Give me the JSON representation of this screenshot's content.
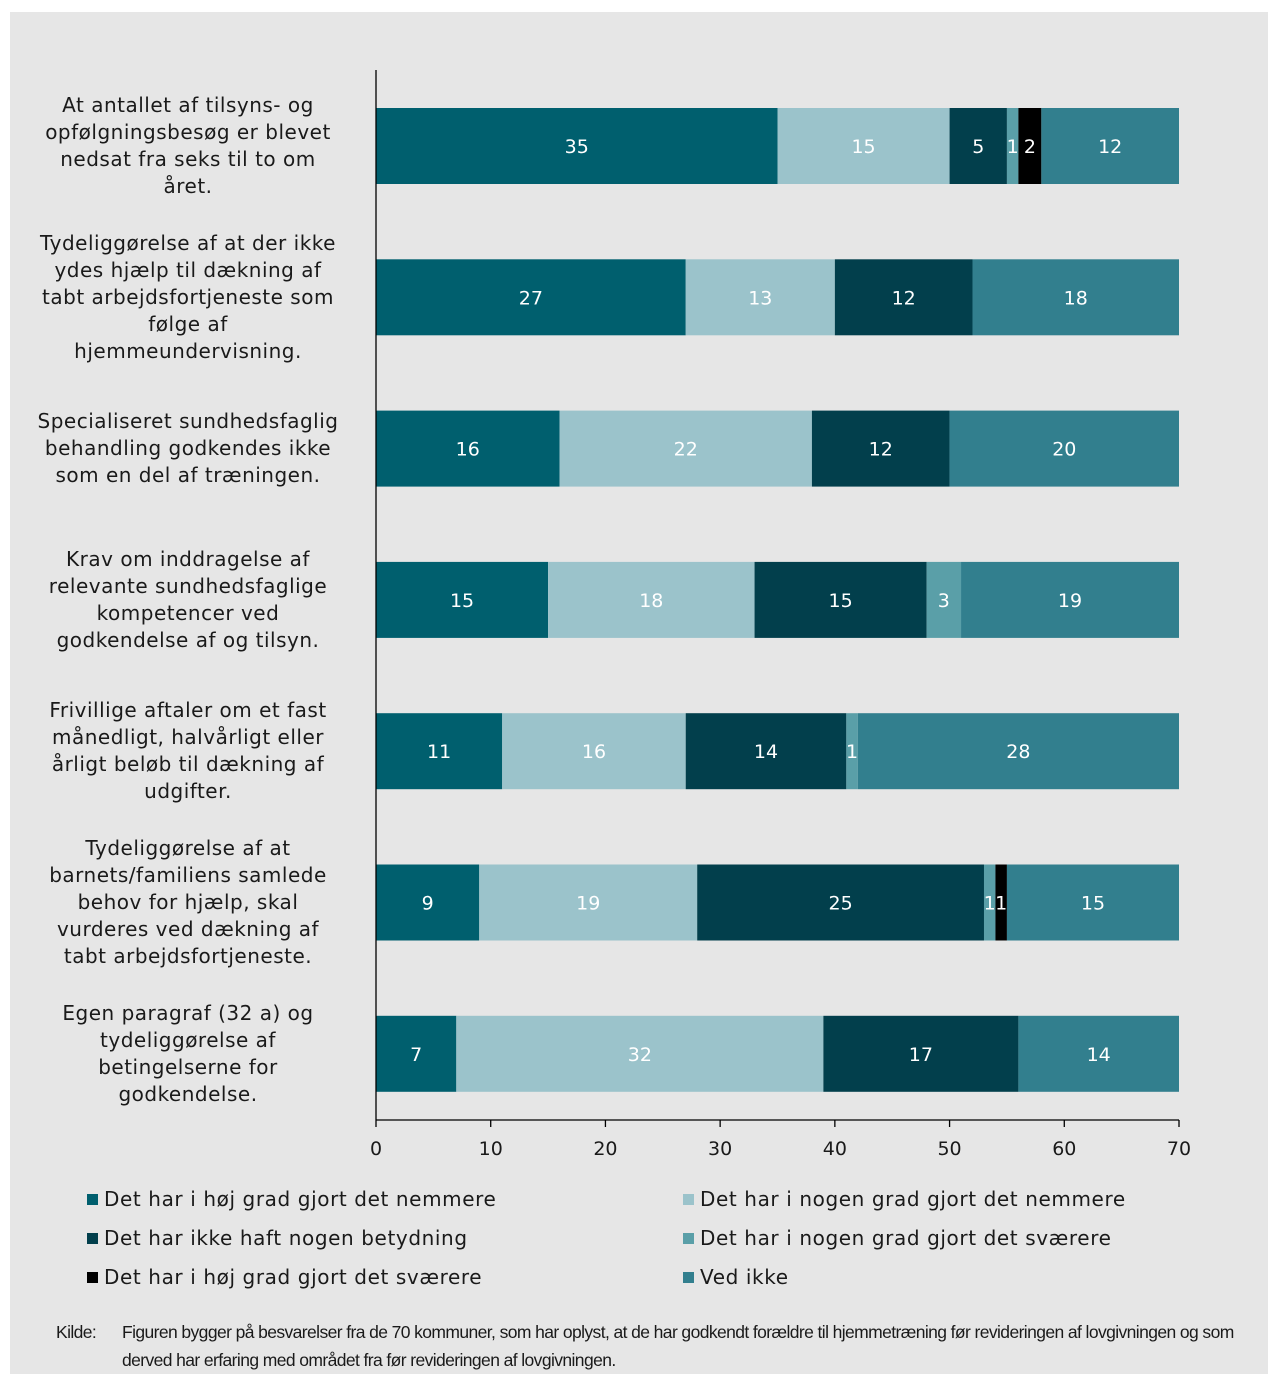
{
  "chart_data": {
    "type": "bar",
    "orientation": "horizontal",
    "stacked": true,
    "categories": [
      "At antallet af tilsyns- og opfølgningsbesøg er blevet nedsat fra seks til to om året.",
      "Tydeliggørelse af at der ikke ydes hjælp til dækning af tabt arbejdsfortjeneste som følge af hjemmeundervisning.",
      "Specialiseret sundhedsfaglig behandling godkendes ikke som en del af træningen.",
      "Krav om inddragelse af relevante sundhedsfaglige kompetencer ved godkendelse af og tilsyn.",
      "Frivillige aftaler om et fast månedligt, halvårligt eller årligt beløb til dækning af udgifter.",
      "Tydeliggørelse af at barnets/familiens samlede behov for hjælp, skal vurderes ved dækning af tabt arbejdsfortjeneste.",
      "Egen paragraf (32 a) og tydeliggørelse af betingelserne for godkendelse."
    ],
    "series": [
      {
        "name": "Det har i høj grad gjort det nemmere",
        "color": "#005f6e",
        "values": [
          35,
          27,
          16,
          15,
          11,
          9,
          7
        ]
      },
      {
        "name": "Det har i nogen grad gjort det nemmere",
        "color": "#9bc3cb",
        "values": [
          15,
          13,
          22,
          18,
          16,
          19,
          32
        ]
      },
      {
        "name": "Det har ikke haft nogen betydning",
        "color": "#023f4c",
        "values": [
          5,
          12,
          12,
          15,
          14,
          25,
          17
        ]
      },
      {
        "name": "Det har i nogen grad gjort det sværere",
        "color": "#5a9fa8",
        "values": [
          1,
          0,
          0,
          3,
          1,
          1,
          0
        ]
      },
      {
        "name": "Det har i høj grad gjort det sværere",
        "color": "#000000",
        "values": [
          2,
          0,
          0,
          0,
          0,
          1,
          0
        ]
      },
      {
        "name": "Ved ikke",
        "color": "#327f8e",
        "values": [
          12,
          18,
          20,
          19,
          28,
          15,
          14
        ]
      }
    ],
    "xlim": [
      0,
      70
    ],
    "xticks": [
      0,
      10,
      20,
      30,
      40,
      50,
      60,
      70
    ],
    "grid": false,
    "legend_placement": "bottom",
    "label_color": "#ffffff",
    "background": "#e6e6e6"
  },
  "category_lines": [
    [
      "At antallet af tilsyns- og",
      "opfølgningsbesøg er blevet",
      "nedsat fra seks til to om",
      "året."
    ],
    [
      "Tydeliggørelse af at der ikke",
      "ydes hjælp til dækning af",
      "tabt arbejdsfortjeneste som",
      "følge af",
      "hjemmeundervisning."
    ],
    [
      "Specialiseret sundhedsfaglig",
      "behandling godkendes ikke",
      "som en del af træningen."
    ],
    [
      "Krav om inddragelse af",
      "relevante sundhedsfaglige",
      "kompetencer ved",
      "godkendelse af og tilsyn."
    ],
    [
      "Frivillige aftaler om et fast",
      "månedligt, halvårligt eller",
      "årligt beløb til dækning af",
      "udgifter."
    ],
    [
      "Tydeliggørelse af at",
      "barnets/familiens samlede",
      "behov for hjælp, skal",
      "vurderes ved dækning af",
      "tabt arbejdsfortjeneste."
    ],
    [
      "Egen paragraf (32 a) og",
      "tydeliggørelse af",
      "betingelserne for",
      "godkendelse."
    ]
  ],
  "source": {
    "label": "Kilde:",
    "text": "Figuren bygger på besvarelser fra de 70 kommuner, som har oplyst, at de har godkendt forældre til hjemmetræning før revideringen af lovgivningen og som derved har erfaring med området fra før revideringen af lovgivningen."
  }
}
